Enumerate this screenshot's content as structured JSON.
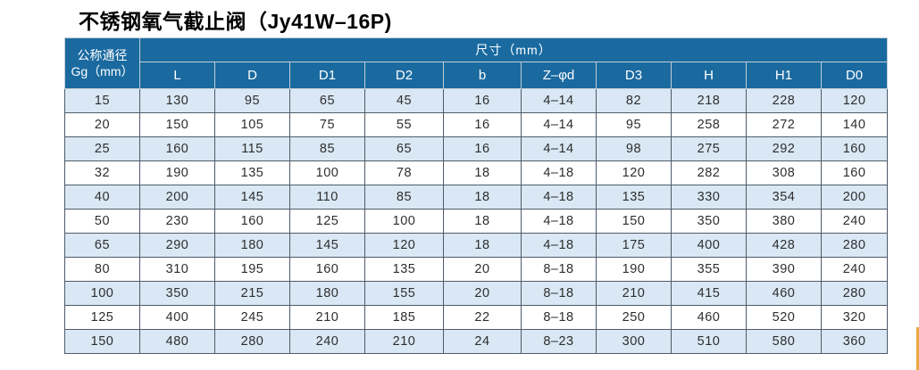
{
  "title": "不锈钢氧气截止阀（Jy41W–16P)",
  "table": {
    "corner_header": {
      "line1": "公称通径",
      "line2": "Gg（mm）"
    },
    "size_header": "尺寸（mm）",
    "columns": [
      "L",
      "D",
      "D1",
      "D2",
      "b",
      "Z–φd",
      "D3",
      "H",
      "H1",
      "D0"
    ],
    "rows": [
      [
        "15",
        "130",
        "95",
        "65",
        "45",
        "16",
        "4–14",
        "82",
        "218",
        "228",
        "120"
      ],
      [
        "20",
        "150",
        "105",
        "75",
        "55",
        "16",
        "4–14",
        "95",
        "258",
        "272",
        "140"
      ],
      [
        "25",
        "160",
        "115",
        "85",
        "65",
        "16",
        "4–14",
        "98",
        "275",
        "292",
        "160"
      ],
      [
        "32",
        "190",
        "135",
        "100",
        "78",
        "18",
        "4–18",
        "120",
        "282",
        "308",
        "160"
      ],
      [
        "40",
        "200",
        "145",
        "110",
        "85",
        "18",
        "4–18",
        "135",
        "330",
        "354",
        "200"
      ],
      [
        "50",
        "230",
        "160",
        "125",
        "100",
        "18",
        "4–18",
        "150",
        "350",
        "380",
        "240"
      ],
      [
        "65",
        "290",
        "180",
        "145",
        "120",
        "18",
        "4–18",
        "175",
        "400",
        "428",
        "280"
      ],
      [
        "80",
        "310",
        "195",
        "160",
        "135",
        "20",
        "8–18",
        "190",
        "355",
        "390",
        "240"
      ],
      [
        "100",
        "350",
        "215",
        "180",
        "155",
        "20",
        "8–18",
        "210",
        "415",
        "460",
        "280"
      ],
      [
        "125",
        "400",
        "245",
        "210",
        "185",
        "22",
        "8–18",
        "250",
        "460",
        "520",
        "320"
      ],
      [
        "150",
        "480",
        "280",
        "240",
        "210",
        "24",
        "8–23",
        "300",
        "510",
        "580",
        "360"
      ]
    ]
  },
  "colors": {
    "header_bg": "#1A6AA0",
    "row_alt_bg": "#D9E8F4",
    "grid_line": "#4F5B68",
    "accent_bar": "#E8A93F"
  }
}
